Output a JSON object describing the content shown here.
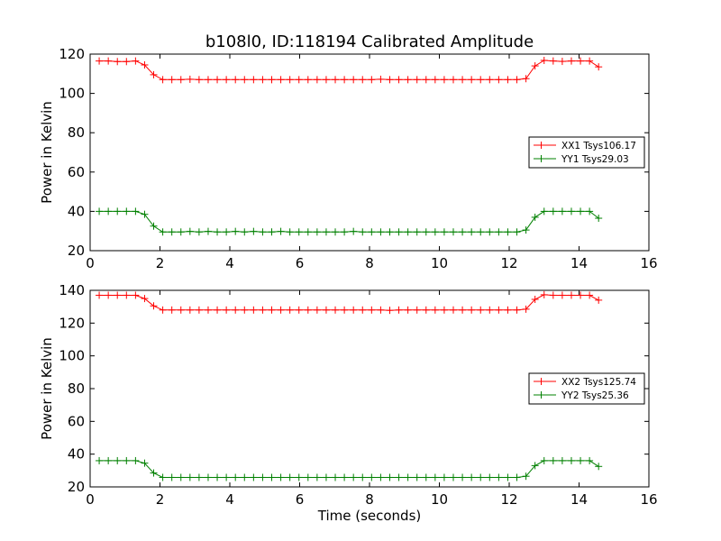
{
  "title": "b108l0, ID:118194 Calibrated Amplitude",
  "colors": {
    "xx": "#ff0000",
    "yy": "#008000"
  },
  "chart_data": [
    {
      "type": "line",
      "title": "b108l0, ID:118194 Calibrated Amplitude",
      "xlabel": "",
      "ylabel": "Power in Kelvin",
      "xlim": [
        0,
        16
      ],
      "ylim": [
        20,
        120
      ],
      "xticks": [
        0,
        2,
        4,
        6,
        8,
        10,
        12,
        14,
        16
      ],
      "yticks": [
        20,
        40,
        60,
        80,
        100,
        120
      ],
      "legend": "center-right",
      "x": [
        0.26,
        0.52,
        0.78,
        1.04,
        1.3,
        1.56,
        1.82,
        2.08,
        2.34,
        2.6,
        2.86,
        3.12,
        3.38,
        3.64,
        3.9,
        4.16,
        4.42,
        4.68,
        4.94,
        5.2,
        5.46,
        5.72,
        5.98,
        6.24,
        6.5,
        6.76,
        7.02,
        7.28,
        7.54,
        7.8,
        8.06,
        8.32,
        8.58,
        8.84,
        9.1,
        9.36,
        9.62,
        9.88,
        10.14,
        10.4,
        10.66,
        10.92,
        11.18,
        11.44,
        11.7,
        11.96,
        12.22,
        12.48,
        12.74,
        13.0,
        13.26,
        13.52,
        13.78,
        14.04,
        14.3,
        14.56
      ],
      "series": [
        {
          "name": "XX1 Tsys106.17",
          "color": "#ff0000",
          "values": [
            116.5,
            116.5,
            116.2,
            116.2,
            116.5,
            114.5,
            109.5,
            107.0,
            107.0,
            107.0,
            107.2,
            107.0,
            107.0,
            107.0,
            107.0,
            107.0,
            107.0,
            107.0,
            107.0,
            107.0,
            107.0,
            107.0,
            107.0,
            107.0,
            107.0,
            107.0,
            107.0,
            107.0,
            107.0,
            107.0,
            107.0,
            107.2,
            107.0,
            107.0,
            107.0,
            107.0,
            107.0,
            107.0,
            107.0,
            107.0,
            107.0,
            107.0,
            107.0,
            107.0,
            107.0,
            107.0,
            107.0,
            107.5,
            114.0,
            116.8,
            116.5,
            116.3,
            116.5,
            116.5,
            116.5,
            113.5
          ]
        },
        {
          "name": "YY1 Tsys29.03",
          "color": "#008000",
          "values": [
            40.0,
            40.0,
            40.0,
            40.0,
            40.0,
            38.5,
            32.5,
            29.5,
            29.5,
            29.5,
            29.8,
            29.5,
            29.8,
            29.5,
            29.5,
            29.8,
            29.5,
            29.8,
            29.5,
            29.5,
            29.8,
            29.5,
            29.5,
            29.5,
            29.5,
            29.5,
            29.5,
            29.5,
            29.8,
            29.5,
            29.5,
            29.5,
            29.5,
            29.5,
            29.5,
            29.5,
            29.5,
            29.5,
            29.5,
            29.5,
            29.5,
            29.5,
            29.5,
            29.5,
            29.5,
            29.5,
            29.5,
            30.5,
            37.0,
            40.0,
            40.0,
            40.0,
            40.0,
            40.0,
            40.0,
            36.5
          ]
        }
      ]
    },
    {
      "type": "line",
      "title": "",
      "xlabel": "Time (seconds)",
      "ylabel": "Power in Kelvin",
      "xlim": [
        0,
        16
      ],
      "ylim": [
        20,
        140
      ],
      "xticks": [
        0,
        2,
        4,
        6,
        8,
        10,
        12,
        14,
        16
      ],
      "yticks": [
        20,
        40,
        60,
        80,
        100,
        120,
        140
      ],
      "legend": "center-right",
      "x": [
        0.26,
        0.52,
        0.78,
        1.04,
        1.3,
        1.56,
        1.82,
        2.08,
        2.34,
        2.6,
        2.86,
        3.12,
        3.38,
        3.64,
        3.9,
        4.16,
        4.42,
        4.68,
        4.94,
        5.2,
        5.46,
        5.72,
        5.98,
        6.24,
        6.5,
        6.76,
        7.02,
        7.28,
        7.54,
        7.8,
        8.06,
        8.32,
        8.58,
        8.84,
        9.1,
        9.36,
        9.62,
        9.88,
        10.14,
        10.4,
        10.66,
        10.92,
        11.18,
        11.44,
        11.7,
        11.96,
        12.22,
        12.48,
        12.74,
        13.0,
        13.26,
        13.52,
        13.78,
        14.04,
        14.3,
        14.56
      ],
      "series": [
        {
          "name": "XX2 Tsys125.74",
          "color": "#ff0000",
          "values": [
            137.0,
            137.0,
            137.0,
            137.0,
            137.0,
            135.0,
            130.5,
            128.0,
            128.0,
            128.0,
            128.0,
            128.0,
            128.0,
            128.0,
            128.0,
            128.0,
            128.0,
            128.0,
            128.0,
            128.0,
            128.0,
            128.0,
            128.0,
            128.0,
            128.0,
            128.0,
            128.0,
            128.0,
            128.0,
            128.0,
            128.0,
            128.0,
            127.8,
            128.0,
            128.0,
            128.0,
            128.0,
            128.0,
            128.0,
            128.0,
            128.0,
            128.0,
            128.0,
            128.0,
            128.0,
            128.0,
            128.0,
            128.5,
            134.5,
            137.3,
            137.0,
            137.0,
            137.0,
            137.0,
            137.0,
            134.0
          ]
        },
        {
          "name": "YY2 Tsys25.36",
          "color": "#008000",
          "values": [
            36.0,
            36.0,
            36.0,
            36.0,
            36.0,
            34.5,
            28.5,
            25.8,
            25.8,
            25.8,
            25.8,
            25.8,
            25.8,
            25.8,
            25.8,
            25.8,
            25.8,
            25.8,
            25.8,
            25.8,
            25.8,
            25.8,
            25.8,
            25.8,
            25.8,
            25.8,
            25.8,
            25.8,
            25.8,
            25.8,
            25.8,
            25.8,
            25.8,
            25.8,
            25.8,
            25.8,
            25.8,
            25.8,
            25.8,
            25.8,
            25.8,
            25.8,
            25.8,
            25.8,
            25.8,
            25.8,
            25.8,
            26.5,
            33.0,
            36.0,
            36.0,
            36.0,
            36.0,
            36.0,
            36.0,
            32.5
          ]
        }
      ]
    }
  ]
}
